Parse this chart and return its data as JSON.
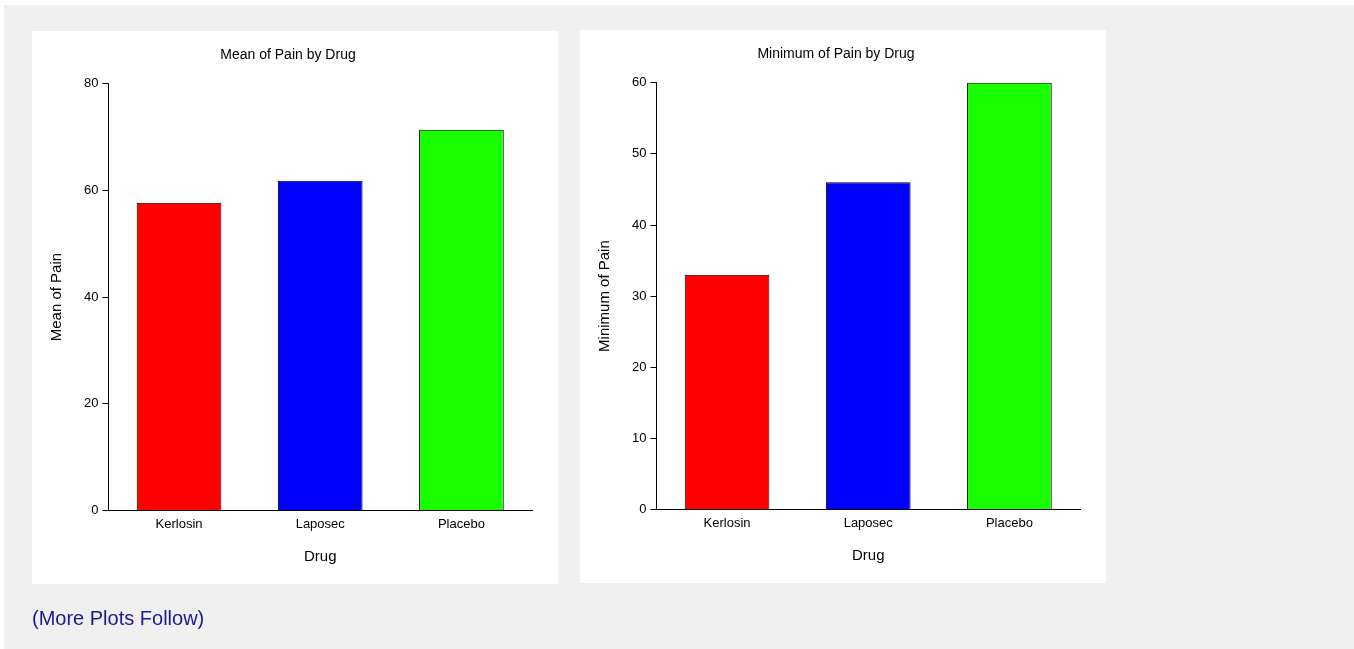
{
  "chart_data": [
    {
      "type": "bar",
      "title": "Mean of Pain by Drug",
      "xlabel": "Drug",
      "ylabel": "Mean of Pain",
      "categories": [
        "Kerlosin",
        "Laposec",
        "Placebo"
      ],
      "values": [
        57.7,
        61.8,
        71.4
      ],
      "colors": [
        "#ff0000",
        "#0000ff",
        "#1aff00"
      ],
      "ylim": [
        0,
        80
      ],
      "yticks": [
        0,
        20,
        40,
        60,
        80
      ],
      "grid": false,
      "legend": false
    },
    {
      "type": "bar",
      "title": "Minimum of Pain by Drug",
      "xlabel": "Drug",
      "ylabel": "Minimum of Pain",
      "categories": [
        "Kerlosin",
        "Laposec",
        "Placebo"
      ],
      "values": [
        33,
        46,
        60
      ],
      "colors": [
        "#ff0000",
        "#0000ff",
        "#1aff00"
      ],
      "ylim": [
        0,
        60
      ],
      "yticks": [
        0,
        10,
        20,
        30,
        40,
        50,
        60
      ],
      "grid": false,
      "legend": false,
      "annotations": [
        "(More Plots Follow)"
      ]
    }
  ]
}
